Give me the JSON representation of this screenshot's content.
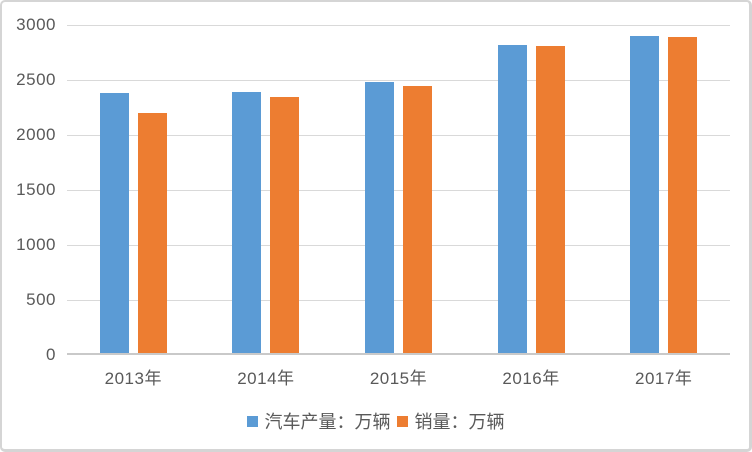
{
  "chart_data": {
    "type": "bar",
    "title": "",
    "categories": [
      "2013年",
      "2014年",
      "2015年",
      "2016年",
      "2017年"
    ],
    "series": [
      {
        "name": "汽车产量：万辆",
        "color": "#5B9BD5",
        "values": [
          2380,
          2390,
          2480,
          2820,
          2900
        ]
      },
      {
        "name": "销量：万辆",
        "color": "#ED7D31",
        "values": [
          2200,
          2350,
          2450,
          2810,
          2890
        ]
      }
    ],
    "xlabel": "",
    "ylabel": "",
    "ylim": [
      0,
      3000
    ],
    "yticks": [
      0,
      500,
      1000,
      1500,
      2000,
      2500,
      3000
    ],
    "grid": "horizontal",
    "legend_position": "bottom"
  },
  "colors": {
    "gridline": "#D9D9D9",
    "axis_line": "#C9C9C9",
    "tick_text": "#595959",
    "frame_border": "#D5D5D5",
    "background": "#FFFFFF"
  }
}
